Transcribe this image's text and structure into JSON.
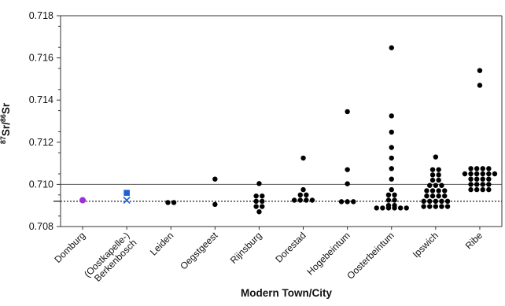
{
  "chart_data": {
    "type": "scatter",
    "xlabel": "Modern Town/City",
    "ylabel": "87Sr/86Sr",
    "ylabel_parts": {
      "sup1": "87",
      "base1": "Sr/",
      "sup2": "86",
      "base2": "Sr"
    },
    "ylim": [
      0.708,
      0.718
    ],
    "yticks": [
      "0.708",
      "0.710",
      "0.712",
      "0.714",
      "0.716",
      "0.718"
    ],
    "reference_lines": [
      {
        "y": 0.71,
        "style": "solid"
      },
      {
        "y": 0.7092,
        "style": "dotted"
      }
    ],
    "categories": [
      "Domburg",
      "(Oostkapelle-)\nBerkenbosch",
      "Leiden",
      "Oegstgeest",
      "Rijnsburg",
      "Dorestad",
      "Hogebeintum",
      "Oosterbeintum",
      "Ipswich",
      "Ribe"
    ],
    "series": [
      {
        "marker": "circle",
        "color": "#9b30d9",
        "points": [
          {
            "x": "Domburg",
            "y": 0.70925
          }
        ]
      },
      {
        "marker": "square",
        "color": "#1f5fd6",
        "points": [
          {
            "x": "(Oostkapelle-)\nBerkenbosch",
            "y": 0.7096
          }
        ]
      },
      {
        "marker": "cross",
        "color": "#1f5fd6",
        "points": [
          {
            "x": "(Oostkapelle-)\nBerkenbosch",
            "y": 0.70925
          }
        ]
      },
      {
        "marker": "circle",
        "color": "#000000",
        "points": [
          {
            "x": "Leiden",
            "y": 0.70914
          },
          {
            "x": "Leiden",
            "y": 0.70914
          },
          {
            "x": "Oegstgeest",
            "y": 0.71025
          },
          {
            "x": "Oegstgeest",
            "y": 0.70905
          },
          {
            "x": "Rijnsburg",
            "y": 0.71004
          },
          {
            "x": "Rijnsburg",
            "y": 0.70945
          },
          {
            "x": "Rijnsburg",
            "y": 0.70945
          },
          {
            "x": "Rijnsburg",
            "y": 0.7092
          },
          {
            "x": "Rijnsburg",
            "y": 0.7092
          },
          {
            "x": "Rijnsburg",
            "y": 0.70895
          },
          {
            "x": "Rijnsburg",
            "y": 0.70895
          },
          {
            "x": "Rijnsburg",
            "y": 0.7087
          },
          {
            "x": "Dorestad",
            "y": 0.71125
          },
          {
            "x": "Dorestad",
            "y": 0.70975
          },
          {
            "x": "Dorestad",
            "y": 0.7095
          },
          {
            "x": "Dorestad",
            "y": 0.7095
          },
          {
            "x": "Dorestad",
            "y": 0.70925
          },
          {
            "x": "Dorestad",
            "y": 0.70925
          },
          {
            "x": "Dorestad",
            "y": 0.70925
          },
          {
            "x": "Dorestad",
            "y": 0.70925
          },
          {
            "x": "Hogebeintum",
            "y": 0.71345
          },
          {
            "x": "Hogebeintum",
            "y": 0.7107
          },
          {
            "x": "Hogebeintum",
            "y": 0.71003
          },
          {
            "x": "Hogebeintum",
            "y": 0.70918
          },
          {
            "x": "Hogebeintum",
            "y": 0.70918
          },
          {
            "x": "Hogebeintum",
            "y": 0.70918
          },
          {
            "x": "Oosterbeintum",
            "y": 0.71648
          },
          {
            "x": "Oosterbeintum",
            "y": 0.71325
          },
          {
            "x": "Oosterbeintum",
            "y": 0.71248
          },
          {
            "x": "Oosterbeintum",
            "y": 0.71175
          },
          {
            "x": "Oosterbeintum",
            "y": 0.71125
          },
          {
            "x": "Oosterbeintum",
            "y": 0.71075
          },
          {
            "x": "Oosterbeintum",
            "y": 0.71025
          },
          {
            "x": "Oosterbeintum",
            "y": 0.70975
          },
          {
            "x": "Oosterbeintum",
            "y": 0.7095
          },
          {
            "x": "Oosterbeintum",
            "y": 0.7095
          },
          {
            "x": "Oosterbeintum",
            "y": 0.70925
          },
          {
            "x": "Oosterbeintum",
            "y": 0.70925
          },
          {
            "x": "Oosterbeintum",
            "y": 0.709
          },
          {
            "x": "Oosterbeintum",
            "y": 0.709
          },
          {
            "x": "Oosterbeintum",
            "y": 0.70888
          },
          {
            "x": "Oosterbeintum",
            "y": 0.70888
          },
          {
            "x": "Oosterbeintum",
            "y": 0.70888
          },
          {
            "x": "Oosterbeintum",
            "y": 0.70888
          },
          {
            "x": "Oosterbeintum",
            "y": 0.70888
          },
          {
            "x": "Oosterbeintum",
            "y": 0.70888
          },
          {
            "x": "Ipswich",
            "y": 0.7113
          },
          {
            "x": "Ipswich",
            "y": 0.7107
          },
          {
            "x": "Ipswich",
            "y": 0.7107
          },
          {
            "x": "Ipswich",
            "y": 0.71045
          },
          {
            "x": "Ipswich",
            "y": 0.71045
          },
          {
            "x": "Ipswich",
            "y": 0.7102
          },
          {
            "x": "Ipswich",
            "y": 0.7102
          },
          {
            "x": "Ipswich",
            "y": 0.70995
          },
          {
            "x": "Ipswich",
            "y": 0.70995
          },
          {
            "x": "Ipswich",
            "y": 0.70995
          },
          {
            "x": "Ipswich",
            "y": 0.7097
          },
          {
            "x": "Ipswich",
            "y": 0.7097
          },
          {
            "x": "Ipswich",
            "y": 0.7097
          },
          {
            "x": "Ipswich",
            "y": 0.7097
          },
          {
            "x": "Ipswich",
            "y": 0.70945
          },
          {
            "x": "Ipswich",
            "y": 0.70945
          },
          {
            "x": "Ipswich",
            "y": 0.70945
          },
          {
            "x": "Ipswich",
            "y": 0.70945
          },
          {
            "x": "Ipswich",
            "y": 0.7092
          },
          {
            "x": "Ipswich",
            "y": 0.7092
          },
          {
            "x": "Ipswich",
            "y": 0.7092
          },
          {
            "x": "Ipswich",
            "y": 0.7092
          },
          {
            "x": "Ipswich",
            "y": 0.7092
          },
          {
            "x": "Ipswich",
            "y": 0.70895
          },
          {
            "x": "Ipswich",
            "y": 0.70895
          },
          {
            "x": "Ipswich",
            "y": 0.70895
          },
          {
            "x": "Ipswich",
            "y": 0.70895
          },
          {
            "x": "Ipswich",
            "y": 0.70895
          },
          {
            "x": "Ribe",
            "y": 0.7154
          },
          {
            "x": "Ribe",
            "y": 0.7147
          },
          {
            "x": "Ribe",
            "y": 0.71075
          },
          {
            "x": "Ribe",
            "y": 0.71075
          },
          {
            "x": "Ribe",
            "y": 0.71075
          },
          {
            "x": "Ribe",
            "y": 0.71075
          },
          {
            "x": "Ribe",
            "y": 0.7105
          },
          {
            "x": "Ribe",
            "y": 0.7105
          },
          {
            "x": "Ribe",
            "y": 0.7105
          },
          {
            "x": "Ribe",
            "y": 0.7105
          },
          {
            "x": "Ribe",
            "y": 0.7105
          },
          {
            "x": "Ribe",
            "y": 0.7105
          },
          {
            "x": "Ribe",
            "y": 0.71025
          },
          {
            "x": "Ribe",
            "y": 0.71025
          },
          {
            "x": "Ribe",
            "y": 0.71025
          },
          {
            "x": "Ribe",
            "y": 0.71025
          },
          {
            "x": "Ribe",
            "y": 0.71
          },
          {
            "x": "Ribe",
            "y": 0.71
          },
          {
            "x": "Ribe",
            "y": 0.71
          },
          {
            "x": "Ribe",
            "y": 0.71
          },
          {
            "x": "Ribe",
            "y": 0.70975
          },
          {
            "x": "Ribe",
            "y": 0.70975
          },
          {
            "x": "Ribe",
            "y": 0.70975
          },
          {
            "x": "Ribe",
            "y": 0.70975
          }
        ]
      }
    ],
    "grid": false,
    "legend": "none"
  }
}
